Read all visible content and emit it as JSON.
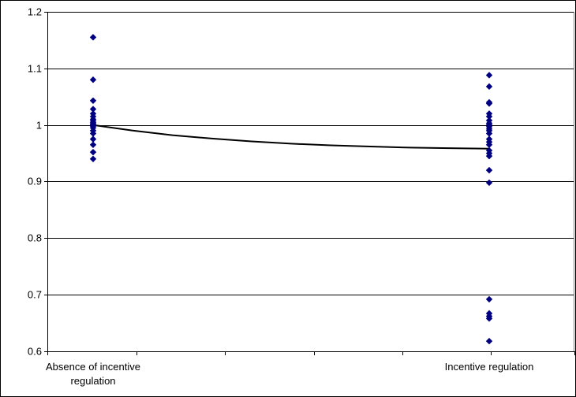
{
  "chart_data": {
    "type": "scatter",
    "title": "",
    "xlabel": "",
    "ylabel": "",
    "ylim": [
      0.6,
      1.2
    ],
    "yticks": [
      0.6,
      0.7,
      0.8,
      0.9,
      1,
      1.1,
      1.2
    ],
    "ytick_labels": [
      "0.6",
      "0.7",
      "0.8",
      "0.9",
      "1",
      "1.1",
      "1.2"
    ],
    "grid": "horizontal",
    "legend": "none",
    "categories": [
      {
        "name": "absence",
        "label_lines": [
          "Absence of incentive",
          "regulation"
        ]
      },
      {
        "name": "incentive",
        "label_lines": [
          "Incentive regulation"
        ]
      }
    ],
    "series": [
      {
        "category": "absence",
        "values": [
          1.155,
          1.08,
          1.043,
          1.028,
          1.02,
          1.015,
          1.01,
          1.007,
          1.004,
          1.002,
          1.0,
          0.998,
          0.995,
          0.99,
          0.985,
          0.975,
          0.965,
          0.952,
          0.94
        ]
      },
      {
        "category": "incentive",
        "values": [
          1.088,
          1.068,
          1.04,
          1.038,
          1.02,
          1.015,
          1.008,
          1.003,
          1.0,
          0.997,
          0.993,
          0.99,
          0.985,
          0.975,
          0.97,
          0.965,
          0.955,
          0.95,
          0.945,
          0.92,
          0.898,
          0.692,
          0.667,
          0.662,
          0.658,
          0.618
        ]
      }
    ],
    "trend_line": {
      "x": [
        0,
        0.1,
        0.2,
        0.3,
        0.4,
        0.5,
        0.6,
        0.7,
        0.8,
        0.9,
        1.0
      ],
      "y": [
        1.0,
        0.99,
        0.982,
        0.976,
        0.971,
        0.967,
        0.964,
        0.962,
        0.96,
        0.959,
        0.958
      ]
    },
    "marker_color": "#000080",
    "line_color": "#000000",
    "grid_color": "#000000"
  }
}
